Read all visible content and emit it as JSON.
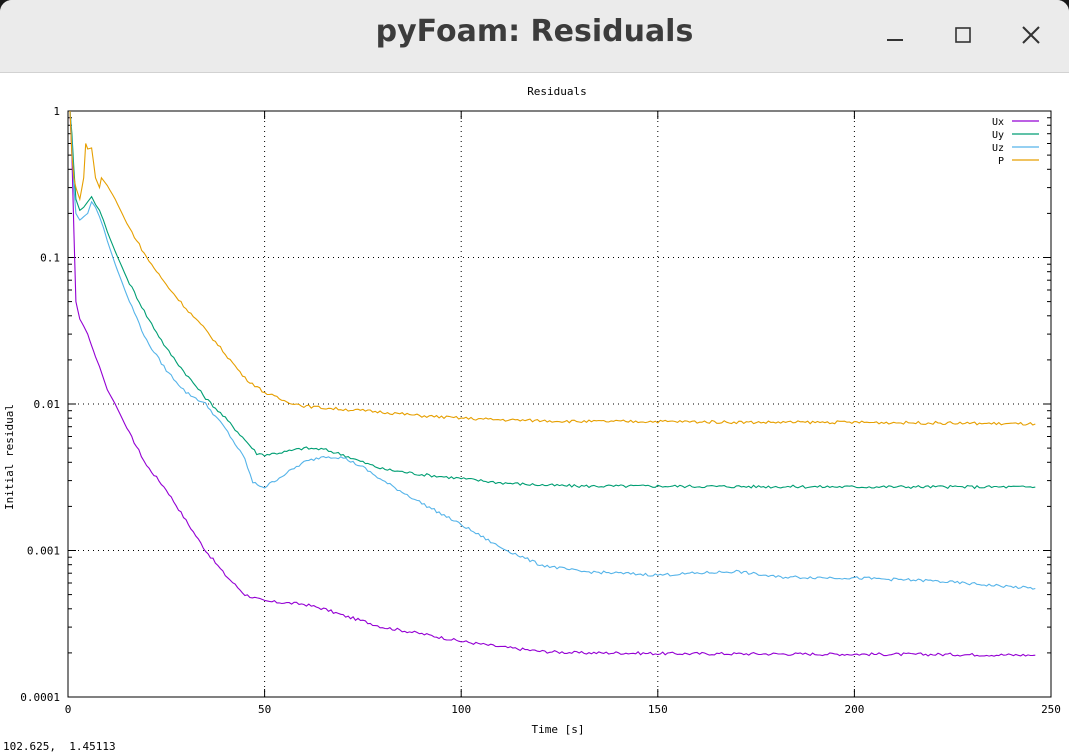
{
  "window": {
    "title": "pyFoam: Residuals",
    "controls": {
      "minimize_icon": "minimize-icon",
      "maximize_icon": "maximize-icon",
      "close_icon": "close-icon"
    }
  },
  "status": {
    "cursor_readout": "102.625,  1.45113"
  },
  "chart_data": {
    "type": "line",
    "title": "Residuals",
    "xlabel": "Time [s]",
    "ylabel": "Initial residual",
    "xlim": [
      0,
      250
    ],
    "ylim": [
      0.0001,
      1
    ],
    "yscale": "log",
    "grid": true,
    "legend_position": "top-right",
    "x_ticks": [
      {
        "value": 0,
        "label": "0"
      },
      {
        "value": 50,
        "label": "50"
      },
      {
        "value": 100,
        "label": "100"
      },
      {
        "value": 150,
        "label": "150"
      },
      {
        "value": 200,
        "label": "200"
      },
      {
        "value": 250,
        "label": "250"
      }
    ],
    "y_ticks": [
      {
        "value": 1,
        "label": "1"
      },
      {
        "value": 0.1,
        "label": "0.1"
      },
      {
        "value": 0.01,
        "label": "0.01"
      },
      {
        "value": 0.001,
        "label": "0.001"
      },
      {
        "value": 0.0001,
        "label": "0.0001"
      }
    ],
    "series": [
      {
        "name": "Ux",
        "color": "#9400d3",
        "x": [
          0.5,
          1,
          1.5,
          2,
          3,
          4,
          5,
          6,
          7,
          8,
          10,
          12,
          15,
          18,
          20,
          25,
          30,
          35,
          40,
          45,
          50,
          55,
          60,
          65,
          70,
          75,
          80,
          90,
          100,
          110,
          120,
          130,
          140,
          150,
          175,
          200,
          225,
          246
        ],
        "y": [
          1,
          0.5,
          0.15,
          0.05,
          0.038,
          0.034,
          0.03,
          0.025,
          0.021,
          0.018,
          0.0125,
          0.01,
          0.0068,
          0.0048,
          0.0038,
          0.0026,
          0.0016,
          0.001,
          0.00068,
          0.0005,
          0.00045,
          0.00044,
          0.00043,
          0.0004,
          0.00036,
          0.00033,
          0.0003,
          0.00027,
          0.00024,
          0.00022,
          0.000205,
          0.0002,
          0.0002,
          0.000198,
          0.000197,
          0.000196,
          0.000195,
          0.000193
        ]
      },
      {
        "name": "Uy",
        "color": "#009e73",
        "x": [
          0.5,
          1,
          1.5,
          2,
          3,
          4,
          5,
          6,
          7,
          8,
          9,
          10,
          12,
          15,
          20,
          25,
          30,
          35,
          40,
          45,
          48,
          50,
          55,
          60,
          65,
          70,
          75,
          80,
          90,
          100,
          110,
          120,
          130,
          150,
          175,
          200,
          225,
          246
        ],
        "y": [
          1,
          0.7,
          0.4,
          0.25,
          0.21,
          0.22,
          0.24,
          0.26,
          0.23,
          0.21,
          0.18,
          0.15,
          0.11,
          0.072,
          0.04,
          0.024,
          0.016,
          0.011,
          0.008,
          0.0057,
          0.0046,
          0.0045,
          0.0047,
          0.005,
          0.0049,
          0.0045,
          0.004,
          0.0036,
          0.0033,
          0.0031,
          0.0029,
          0.0028,
          0.00275,
          0.00275,
          0.00273,
          0.00272,
          0.00272,
          0.00271
        ]
      },
      {
        "name": "Uz",
        "color": "#56b4e9",
        "x": [
          0.5,
          1,
          1.5,
          2,
          3,
          4,
          5,
          6,
          7,
          8,
          9,
          10,
          12,
          15,
          20,
          25,
          30,
          35,
          40,
          45,
          47,
          50,
          55,
          60,
          65,
          70,
          75,
          80,
          90,
          100,
          110,
          120,
          130,
          150,
          170,
          180,
          200,
          220,
          246
        ],
        "y": [
          1,
          0.6,
          0.3,
          0.2,
          0.18,
          0.19,
          0.2,
          0.24,
          0.22,
          0.19,
          0.16,
          0.13,
          0.09,
          0.055,
          0.027,
          0.017,
          0.012,
          0.01,
          0.0068,
          0.0042,
          0.0029,
          0.0027,
          0.0033,
          0.004,
          0.0044,
          0.0043,
          0.0037,
          0.003,
          0.0021,
          0.0015,
          0.00105,
          0.0008,
          0.00072,
          0.00068,
          0.00072,
          0.00066,
          0.00065,
          0.00062,
          0.00055
        ]
      },
      {
        "name": "P",
        "color": "#e69f00",
        "x": [
          0.5,
          1,
          1.5,
          2,
          3,
          4,
          4.5,
          5,
          6,
          7,
          8,
          8.5,
          10,
          12,
          15,
          20,
          25,
          30,
          35,
          40,
          45,
          50,
          55,
          60,
          65,
          70,
          75,
          80,
          90,
          100,
          110,
          120,
          130,
          150,
          175,
          200,
          225,
          246
        ],
        "y": [
          1,
          0.5,
          0.35,
          0.3,
          0.25,
          0.35,
          0.6,
          0.55,
          0.56,
          0.35,
          0.3,
          0.35,
          0.31,
          0.25,
          0.17,
          0.1,
          0.065,
          0.045,
          0.032,
          0.022,
          0.015,
          0.012,
          0.0105,
          0.0097,
          0.0094,
          0.0092,
          0.009,
          0.0088,
          0.0083,
          0.008,
          0.0078,
          0.0077,
          0.0076,
          0.0076,
          0.0075,
          0.0075,
          0.0074,
          0.0073
        ]
      }
    ]
  }
}
